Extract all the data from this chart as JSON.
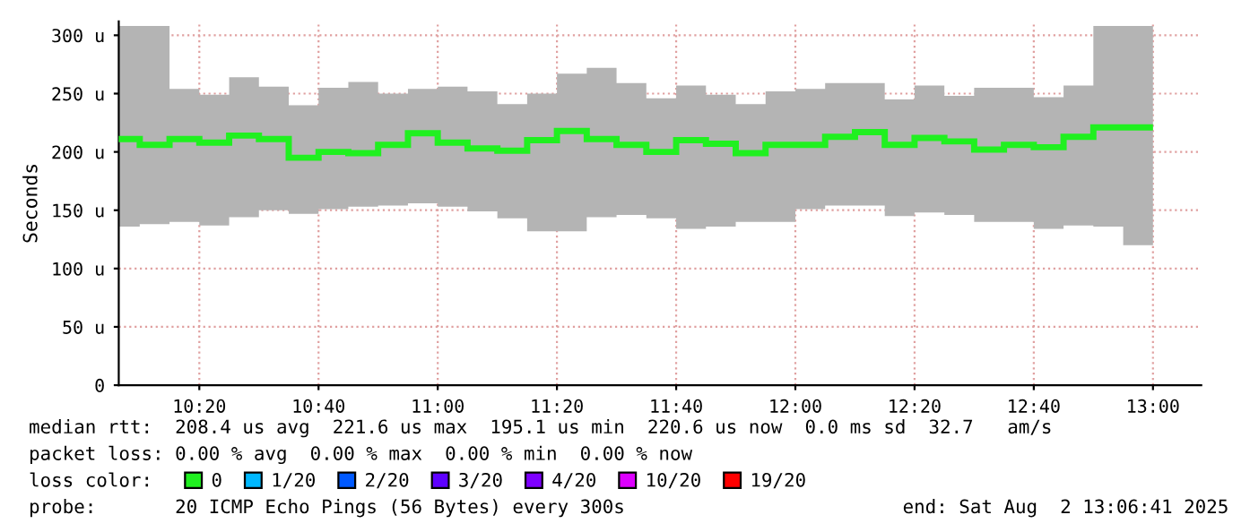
{
  "chart_data": {
    "type": "step",
    "ylabel": "Seconds",
    "legend_title": "loss color:",
    "legend": "bottom left",
    "grid": true,
    "line_style": "solid",
    "marker": "none",
    "x": [
      10.1667,
      10.25,
      10.3333,
      10.4167,
      10.5,
      10.5833,
      10.6667,
      10.75,
      10.8333,
      10.9167,
      11,
      11.0833,
      11.1667,
      11.25,
      11.3333,
      11.4167,
      11.5,
      11.5833,
      11.6667,
      11.75,
      11.8333,
      11.9167,
      12,
      12.0833,
      12.1667,
      12.25,
      12.3333,
      12.4167,
      12.5,
      12.5833,
      12.6667,
      12.75,
      12.8333,
      12.9167,
      13
    ],
    "xlim": [
      10.108,
      13.135
    ],
    "xticks": [
      {
        "value": 10.3333,
        "label": "10:20"
      },
      {
        "value": 10.6667,
        "label": "10:40"
      },
      {
        "value": 11,
        "label": "11:00"
      },
      {
        "value": 11.3333,
        "label": "11:20"
      },
      {
        "value": 11.6667,
        "label": "11:40"
      },
      {
        "value": 12,
        "label": "12:00"
      },
      {
        "value": 12.3333,
        "label": "12:20"
      },
      {
        "value": 12.6667,
        "label": "12:40"
      },
      {
        "value": 13,
        "label": "13:00"
      }
    ],
    "ylim": [
      0,
      312
    ],
    "yticks": [
      0,
      {
        "value": 50,
        "label": "50 u"
      },
      {
        "value": 100,
        "label": "100 u"
      },
      {
        "value": 150,
        "label": "150 u"
      },
      {
        "value": 200,
        "label": "200 u"
      },
      {
        "value": 250,
        "label": "250 u"
      },
      {
        "value": 300,
        "label": "300 u"
      }
    ],
    "series": [
      {
        "name": "0",
        "color": "#20f020",
        "values": [
          211,
          206,
          211,
          208,
          214,
          211,
          195,
          200,
          199,
          206,
          216,
          208,
          203,
          201,
          210,
          218,
          211,
          206,
          200,
          210,
          207,
          199,
          206,
          206,
          213,
          217,
          206,
          212,
          209,
          202,
          206,
          204,
          213,
          221,
          221
        ],
        "lower": [
          136,
          138,
          140,
          137,
          144,
          150,
          147,
          151,
          153,
          154,
          156,
          153,
          149,
          143,
          132,
          132,
          144,
          146,
          143,
          134,
          136,
          140,
          140,
          151,
          154,
          154,
          145,
          148,
          146,
          140,
          140,
          134,
          137,
          136,
          120
        ],
        "upper": [
          308,
          308,
          254,
          249,
          264,
          256,
          240,
          255,
          260,
          250,
          254,
          256,
          252,
          241,
          250,
          267,
          272,
          259,
          246,
          257,
          249,
          241,
          252,
          254,
          259,
          259,
          245,
          257,
          248,
          255,
          255,
          247,
          257,
          308,
          308
        ]
      },
      {
        "name": "1/20",
        "color": "#00b8ff",
        "values": [
          null,
          null,
          null,
          null,
          null,
          null,
          null,
          null,
          null,
          null,
          null,
          null,
          null,
          null,
          null,
          null,
          null,
          null,
          null,
          null,
          null,
          null,
          null,
          null,
          null,
          null,
          null,
          null,
          null,
          null,
          null,
          null,
          null,
          null,
          null
        ]
      },
      {
        "name": "2/20",
        "color": "#0059ff",
        "values": [
          null,
          null,
          null,
          null,
          null,
          null,
          null,
          null,
          null,
          null,
          null,
          null,
          null,
          null,
          null,
          null,
          null,
          null,
          null,
          null,
          null,
          null,
          null,
          null,
          null,
          null,
          null,
          null,
          null,
          null,
          null,
          null,
          null,
          null,
          null
        ]
      },
      {
        "name": "3/20",
        "color": "#5e00ff",
        "values": [
          null,
          null,
          null,
          null,
          null,
          null,
          null,
          null,
          null,
          null,
          null,
          null,
          null,
          null,
          null,
          null,
          null,
          null,
          null,
          null,
          null,
          null,
          null,
          null,
          null,
          null,
          null,
          null,
          null,
          null,
          null,
          null,
          null,
          null,
          null
        ]
      },
      {
        "name": "4/20",
        "color": "#7e00ff",
        "values": [
          null,
          null,
          null,
          null,
          null,
          null,
          null,
          null,
          null,
          null,
          null,
          null,
          null,
          null,
          null,
          null,
          null,
          null,
          null,
          null,
          null,
          null,
          null,
          null,
          null,
          null,
          null,
          null,
          null,
          null,
          null,
          null,
          null,
          null,
          null
        ]
      },
      {
        "name": "10/20",
        "color": "#dd00ff",
        "values": [
          null,
          null,
          null,
          null,
          null,
          null,
          null,
          null,
          null,
          null,
          null,
          null,
          null,
          null,
          null,
          null,
          null,
          null,
          null,
          null,
          null,
          null,
          null,
          null,
          null,
          null,
          null,
          null,
          null,
          null,
          null,
          null,
          null,
          null,
          null
        ]
      },
      {
        "name": "19/20",
        "color": "#ff0000",
        "values": [
          null,
          null,
          null,
          null,
          null,
          null,
          null,
          null,
          null,
          null,
          null,
          null,
          null,
          null,
          null,
          null,
          null,
          null,
          null,
          null,
          null,
          null,
          null,
          null,
          null,
          null,
          null,
          null,
          null,
          null,
          null,
          null,
          null,
          null,
          null
        ]
      }
    ],
    "annotations": [
      "median rtt:  208.4 us avg  221.6 us max  195.1 us min  220.6 us now  0.0 ms sd  32.7   am/s",
      "packet loss: 0.00 % avg  0.00 % max  0.00 % min  0.00 % now",
      "probe:       20 ICMP Echo Pings (56 Bytes) every 300s",
      "end: Sat Aug  2 13:06:41 2025"
    ]
  }
}
